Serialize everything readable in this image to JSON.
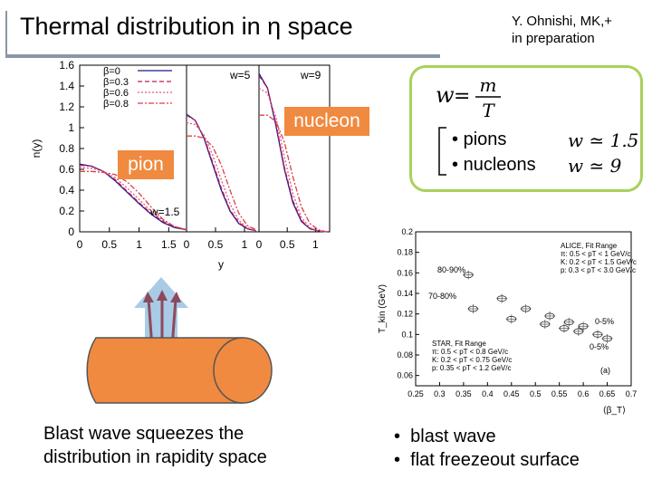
{
  "title": "Thermal distribution in η space",
  "authors": {
    "line1": "Y. Ohnishi, MK,+",
    "line2": "in preparation"
  },
  "labels": {
    "nucleon": "nucleon",
    "pion": "pion"
  },
  "formula": {
    "lhs": "w",
    "numerator": "m",
    "denominator": "T",
    "items": [
      {
        "label": "pions",
        "value": "w ≃ 1.5"
      },
      {
        "label": "nucleons",
        "value": "w ≃ 9"
      }
    ]
  },
  "captions": {
    "left_line1": "Blast wave squeezes the",
    "left_line2": "distribution in rapidity space",
    "right": [
      "blast wave",
      "flat freezeout surface"
    ],
    "bullet": "•"
  },
  "colors": {
    "accent_orange": "#f08a40",
    "formula_border": "#a9d15a",
    "title_rule": "#8a95a8",
    "arrow": "#8b4a5c",
    "arrow_bg": "#a9cbe6"
  },
  "chart_data": [
    {
      "type": "line",
      "ylabel": "n(y)",
      "xlabel": "y",
      "ylim": [
        0,
        1.6
      ],
      "yticks": [
        "0",
        "0.2",
        "0.4",
        "0.6",
        "0.8",
        "1",
        "1.2",
        "1.4",
        "1.6"
      ],
      "xticks": [
        "0",
        "0.5",
        "1",
        "1.5",
        "0",
        "0.5",
        "1",
        "0",
        "0.5",
        "1"
      ],
      "legend": [
        "β=0",
        "β=0.3",
        "β=0.6",
        "β=0.8"
      ],
      "panel_labels": [
        "w=1.5",
        "w=5",
        "w=9"
      ],
      "panels": [
        {
          "name": "w=1.5",
          "xlim": [
            0,
            1.8
          ],
          "x": [
            0,
            0.2,
            0.4,
            0.6,
            0.8,
            1.0,
            1.2,
            1.4,
            1.6,
            1.8
          ],
          "series": [
            {
              "name": "β=0",
              "values": [
                0.65,
                0.63,
                0.58,
                0.49,
                0.38,
                0.27,
                0.17,
                0.09,
                0.04,
                0.02
              ]
            },
            {
              "name": "β=0.3",
              "values": [
                0.64,
                0.63,
                0.58,
                0.5,
                0.39,
                0.28,
                0.18,
                0.1,
                0.05,
                0.02
              ]
            },
            {
              "name": "β=0.6",
              "values": [
                0.62,
                0.61,
                0.58,
                0.52,
                0.42,
                0.31,
                0.2,
                0.11,
                0.05,
                0.02
              ]
            },
            {
              "name": "β=0.8",
              "values": [
                0.58,
                0.58,
                0.57,
                0.55,
                0.48,
                0.37,
                0.24,
                0.12,
                0.05,
                0.02
              ]
            }
          ]
        },
        {
          "name": "w=5",
          "xlim": [
            0,
            1.25
          ],
          "x": [
            0,
            0.15,
            0.3,
            0.45,
            0.6,
            0.75,
            0.9,
            1.05,
            1.2
          ],
          "series": [
            {
              "name": "β=0",
              "values": [
                1.13,
                1.07,
                0.9,
                0.65,
                0.4,
                0.2,
                0.08,
                0.03,
                0.01
              ]
            },
            {
              "name": "β=0.3",
              "values": [
                1.12,
                1.07,
                0.91,
                0.67,
                0.42,
                0.21,
                0.09,
                0.03,
                0.01
              ]
            },
            {
              "name": "β=0.6",
              "values": [
                1.05,
                1.03,
                0.93,
                0.74,
                0.5,
                0.27,
                0.11,
                0.04,
                0.01
              ]
            },
            {
              "name": "β=0.8",
              "values": [
                0.92,
                0.92,
                0.9,
                0.82,
                0.64,
                0.4,
                0.18,
                0.06,
                0.02
              ]
            }
          ]
        },
        {
          "name": "w=9",
          "xlim": [
            0,
            1.25
          ],
          "x": [
            0,
            0.15,
            0.3,
            0.45,
            0.6,
            0.75,
            0.9,
            1.05,
            1.2
          ],
          "series": [
            {
              "name": "β=0",
              "values": [
                1.52,
                1.38,
                1.02,
                0.6,
                0.28,
                0.1,
                0.03,
                0.01,
                0.0
              ]
            },
            {
              "name": "β=0.3",
              "values": [
                1.5,
                1.38,
                1.04,
                0.62,
                0.3,
                0.11,
                0.03,
                0.01,
                0.0
              ]
            },
            {
              "name": "β=0.6",
              "values": [
                1.38,
                1.33,
                1.1,
                0.72,
                0.37,
                0.14,
                0.04,
                0.01,
                0.0
              ]
            },
            {
              "name": "β=0.8",
              "values": [
                1.12,
                1.12,
                1.06,
                0.86,
                0.53,
                0.24,
                0.08,
                0.02,
                0.0
              ]
            }
          ]
        }
      ]
    },
    {
      "type": "scatter",
      "ylabel": "T_kin (GeV)",
      "xlabel": "⟨β_T⟩",
      "xlim": [
        0.25,
        0.7
      ],
      "ylim": [
        0.05,
        0.2
      ],
      "xticks": [
        "0.25",
        "0.3",
        "0.35",
        "0.4",
        "0.45",
        "0.5",
        "0.55",
        "0.6",
        "0.65",
        "0.7"
      ],
      "yticks": [
        "0.06",
        "0.08",
        "0.1",
        "0.12",
        "0.14",
        "0.16",
        "0.18",
        "0.2"
      ],
      "legend_alice": [
        "ALICE, Fit Range",
        "π: 0.5 < pT < 1 GeV/c",
        "K: 0.2 < pT < 1.5 GeV/c",
        "p: 0.3 < pT < 3.0 GeV/c"
      ],
      "legend_star": [
        "STAR, Fit Range",
        "π: 0.5 < pT < 0.8 GeV/c",
        "K: 0.2 < pT < 0.75 GeV/c",
        "p: 0.35 < pT < 1.2 GeV/c"
      ],
      "annotations": [
        "80-90%",
        "70-80%",
        "0-5%",
        "0-5%",
        "(a)"
      ],
      "points": [
        {
          "x": 0.36,
          "y": 0.158
        },
        {
          "x": 0.43,
          "y": 0.135
        },
        {
          "x": 0.48,
          "y": 0.125
        },
        {
          "x": 0.53,
          "y": 0.118
        },
        {
          "x": 0.57,
          "y": 0.112
        },
        {
          "x": 0.6,
          "y": 0.108
        },
        {
          "x": 0.63,
          "y": 0.1
        },
        {
          "x": 0.65,
          "y": 0.096
        },
        {
          "x": 0.37,
          "y": 0.125
        },
        {
          "x": 0.45,
          "y": 0.115
        },
        {
          "x": 0.52,
          "y": 0.11
        },
        {
          "x": 0.56,
          "y": 0.106
        },
        {
          "x": 0.59,
          "y": 0.103
        }
      ]
    }
  ]
}
